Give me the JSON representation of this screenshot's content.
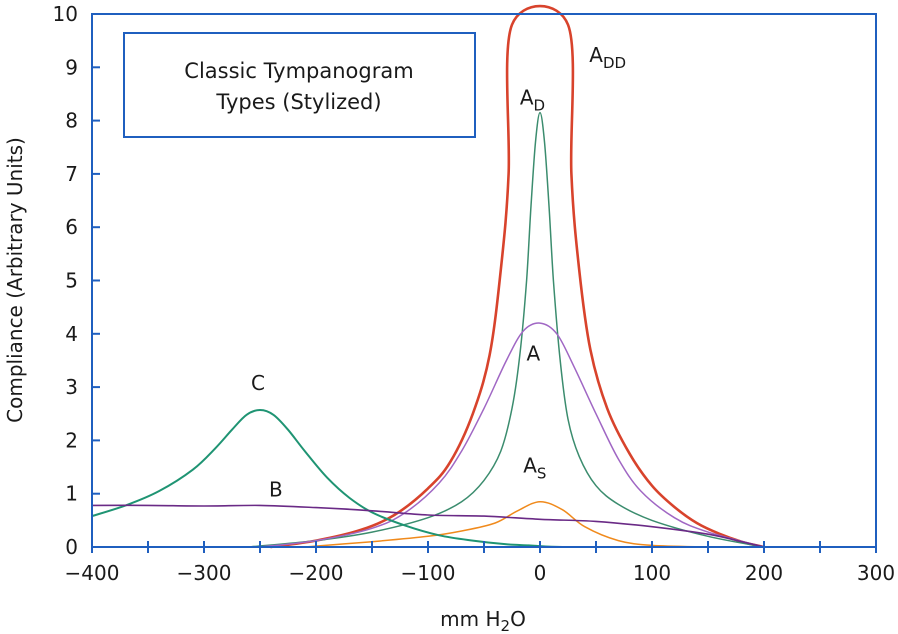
{
  "chart_data": {
    "type": "line",
    "title": "Classic Tympanogram Types (Stylized)",
    "title_lines": [
      "Classic Tympanogram",
      "Types (Stylized)"
    ],
    "xlabel": "mm H2O",
    "xlabel_main": "mm H",
    "xlabel_sub": "2",
    "xlabel_tail": "O",
    "ylabel": "Compliance (Arbitrary Units)",
    "xlim": [
      -400,
      300
    ],
    "ylim": [
      0,
      10
    ],
    "x_ticks": [
      -400,
      -300,
      -200,
      -100,
      0,
      100,
      200,
      300
    ],
    "x_tick_labels": [
      "−400",
      "−300",
      "−200",
      "−100",
      "0",
      "100",
      "200",
      "300"
    ],
    "x_minor_ticks": [
      -350,
      -250,
      -150,
      -50,
      50,
      150,
      250
    ],
    "y_ticks": [
      0,
      1,
      2,
      3,
      4,
      5,
      6,
      7,
      8,
      9,
      10
    ],
    "y_tick_labels": [
      "0",
      "1",
      "2",
      "3",
      "4",
      "5",
      "6",
      "7",
      "8",
      "9",
      "10"
    ],
    "axis_color": "#1f5fbf",
    "series": [
      {
        "name": "ADD",
        "label_main": "A",
        "label_sub": "DD",
        "color": "#d8432c",
        "width": 2.6,
        "label_at": [
          44,
          9.1
        ],
        "x": [
          -240,
          -200,
          -160,
          -130,
          -100,
          -80,
          -60,
          -45,
          -35,
          -28,
          -25,
          25,
          28,
          35,
          45,
          60,
          80,
          100,
          120,
          140,
          160,
          180,
          200
        ],
        "values": [
          0.0,
          0.12,
          0.32,
          0.6,
          1.1,
          1.6,
          2.5,
          3.6,
          5.2,
          7.0,
          9.8,
          9.8,
          7.0,
          5.2,
          3.7,
          2.6,
          1.75,
          1.15,
          0.75,
          0.45,
          0.25,
          0.1,
          0.0
        ]
      },
      {
        "name": "AD",
        "label_main": "A",
        "label_sub": "D",
        "color": "#3b8c6e",
        "width": 1.5,
        "label_at": [
          -18,
          8.3
        ],
        "x": [
          -260,
          -200,
          -150,
          -100,
          -70,
          -50,
          -35,
          -25,
          -18,
          -12,
          -8,
          -4,
          0,
          4,
          8,
          12,
          18,
          25,
          35,
          50,
          70,
          100,
          150,
          200
        ],
        "values": [
          0.0,
          0.12,
          0.28,
          0.55,
          0.85,
          1.25,
          1.8,
          2.6,
          3.6,
          5.0,
          6.4,
          7.6,
          8.15,
          7.6,
          6.4,
          5.0,
          3.5,
          2.4,
          1.7,
          1.15,
          0.8,
          0.5,
          0.2,
          0.0
        ]
      },
      {
        "name": "A",
        "label_main": "A",
        "label_sub": "",
        "color": "#a067c4",
        "width": 1.5,
        "label_at": [
          -12,
          3.5
        ],
        "x": [
          -250,
          -200,
          -150,
          -120,
          -90,
          -70,
          -50,
          -30,
          -15,
          0,
          15,
          30,
          50,
          70,
          90,
          120,
          150,
          200
        ],
        "values": [
          0.0,
          0.12,
          0.35,
          0.65,
          1.2,
          1.8,
          2.6,
          3.5,
          4.05,
          4.2,
          4.0,
          3.4,
          2.5,
          1.65,
          1.05,
          0.55,
          0.28,
          0.0
        ]
      },
      {
        "name": "AS",
        "label_main": "A",
        "label_sub": "S",
        "color": "#f08a1c",
        "width": 1.5,
        "label_at": [
          -15,
          1.4
        ],
        "x": [
          -210,
          -150,
          -100,
          -70,
          -40,
          -20,
          0,
          20,
          40,
          70,
          100,
          150
        ],
        "values": [
          0.0,
          0.1,
          0.2,
          0.3,
          0.45,
          0.68,
          0.85,
          0.7,
          0.38,
          0.12,
          0.03,
          0.0
        ]
      },
      {
        "name": "C",
        "label_main": "C",
        "label_sub": "",
        "color": "#1f9473",
        "width": 2.0,
        "label_at": [
          -258,
          2.95
        ],
        "x": [
          -400,
          -370,
          -340,
          -310,
          -290,
          -275,
          -262,
          -250,
          -238,
          -225,
          -210,
          -190,
          -170,
          -150,
          -120,
          -90,
          -60,
          -30,
          -10,
          5,
          20
        ],
        "values": [
          0.58,
          0.78,
          1.05,
          1.45,
          1.85,
          2.2,
          2.48,
          2.57,
          2.48,
          2.2,
          1.8,
          1.3,
          0.92,
          0.65,
          0.4,
          0.22,
          0.12,
          0.05,
          0.03,
          0.01,
          0.0
        ]
      },
      {
        "name": "B",
        "label_main": "B",
        "label_sub": "",
        "color": "#6a2a86",
        "width": 1.6,
        "label_at": [
          -242,
          0.95
        ],
        "x": [
          -400,
          -350,
          -300,
          -250,
          -200,
          -150,
          -100,
          -50,
          0,
          50,
          100,
          150,
          180,
          200
        ],
        "values": [
          0.78,
          0.78,
          0.77,
          0.78,
          0.74,
          0.68,
          0.6,
          0.58,
          0.52,
          0.48,
          0.38,
          0.24,
          0.1,
          0.0
        ]
      }
    ]
  }
}
